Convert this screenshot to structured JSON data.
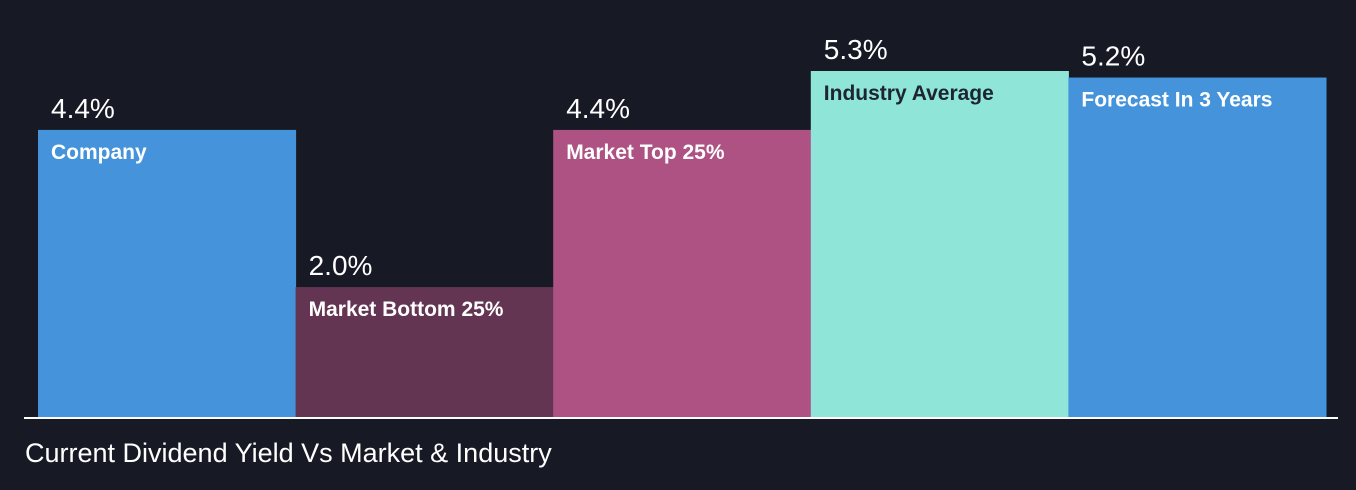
{
  "chart_data": {
    "type": "bar",
    "title": "Current Dividend Yield Vs Market & Industry",
    "categories": [
      "Company",
      "Market Bottom 25%",
      "Market Top 25%",
      "Industry Average",
      "Forecast In 3 Years"
    ],
    "values": [
      4.4,
      2.0,
      4.4,
      5.3,
      5.2
    ],
    "value_labels": [
      "4.4%",
      "2.0%",
      "4.4%",
      "5.3%",
      "5.2%"
    ],
    "unit": "%",
    "bar_colors": [
      "#4594db",
      "#633553",
      "#ad5283",
      "#8ee5d8",
      "#4594db"
    ],
    "label_colors": [
      "#ffffff",
      "#ffffff",
      "#ffffff",
      "#1d2530",
      "#ffffff"
    ],
    "ylim": [
      0,
      5.3
    ],
    "grid": false,
    "legend": "none"
  },
  "colors": {
    "background": "#171a24",
    "baseline": "#ffffff",
    "text": "#ffffff"
  }
}
